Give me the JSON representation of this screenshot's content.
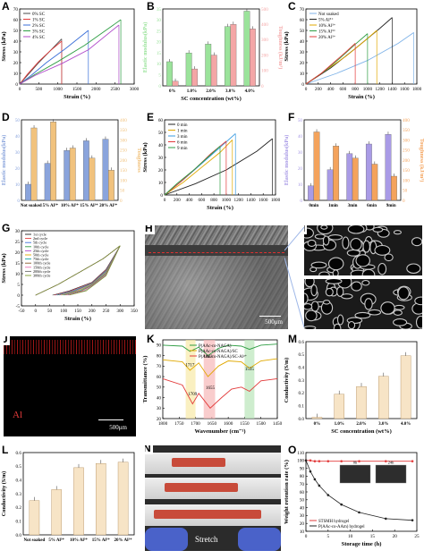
{
  "chart_data": [
    {
      "panel": "A",
      "type": "line",
      "xlabel": "Strain (%)",
      "ylabel": "Stress (kPa)",
      "xlim": [
        0,
        3000
      ],
      "ylim": [
        0,
        70
      ],
      "xticks": [
        0,
        500,
        1000,
        1500,
        2000,
        2500,
        3000
      ],
      "yticks": [
        0,
        10,
        20,
        30,
        40,
        50,
        60,
        70
      ],
      "legend_position": "top-left",
      "series": [
        {
          "name": "0% SC",
          "color": "#4a4a4a",
          "x": [
            0,
            200,
            500,
            800,
            1100
          ],
          "y": [
            0,
            8,
            20,
            31,
            42
          ],
          "break": [
            1100,
            42
          ]
        },
        {
          "name": "1% SC",
          "color": "#e23b3b",
          "x": [
            0,
            200,
            500,
            800,
            1100
          ],
          "y": [
            0,
            9,
            21,
            31,
            40
          ],
          "break": [
            1100,
            40
          ]
        },
        {
          "name": "2% SC",
          "color": "#3a6fd8",
          "x": [
            0,
            300,
            700,
            1200,
            1800
          ],
          "y": [
            0,
            8,
            20,
            33,
            50
          ],
          "break": [
            1800,
            50
          ]
        },
        {
          "name": "3% SC",
          "color": "#2f9e44",
          "x": [
            0,
            400,
            1000,
            1700,
            2650
          ],
          "y": [
            0,
            9,
            21,
            36,
            60
          ],
          "break": [
            2650,
            60
          ]
        },
        {
          "name": "4% SC",
          "color": "#b04aca",
          "x": [
            0,
            400,
            1100,
            1800,
            2600
          ],
          "y": [
            0,
            8,
            19,
            32,
            55
          ],
          "break": [
            2600,
            55
          ]
        }
      ]
    },
    {
      "panel": "B",
      "type": "bar",
      "xlabel": "SC concentration (wt%)",
      "ylabel_left": "Elastic modulus(kPa)",
      "ylabel_right": "Toughness (kJ/m³)",
      "categories": [
        "0%",
        "1.0%",
        "2.0%",
        "3.0%",
        "4.0%"
      ],
      "ylim_left": [
        0,
        35
      ],
      "ylim_right": [
        0,
        500
      ],
      "yticks_left": [
        0,
        5,
        10,
        15,
        20,
        25,
        30,
        35
      ],
      "yticks_right": [
        0,
        100,
        200,
        300,
        400,
        500
      ],
      "series": [
        {
          "name": "Elastic modulus",
          "axis": "left",
          "color": "#9be39b",
          "values": [
            11,
            15,
            19,
            27,
            34
          ]
        },
        {
          "name": "Toughness",
          "axis": "right",
          "color": "#f4a6a6",
          "values": [
            30,
            110,
            200,
            400,
            370
          ]
        }
      ]
    },
    {
      "panel": "C",
      "type": "line",
      "xlabel": "Strain (%)",
      "ylabel": "Stress (kPa)",
      "xlim": [
        0,
        1800
      ],
      "ylim": [
        0,
        70
      ],
      "xticks": [
        0,
        200,
        400,
        600,
        800,
        1000,
        1200,
        1400,
        1600,
        1800
      ],
      "yticks": [
        0,
        10,
        20,
        30,
        40,
        50,
        60,
        70
      ],
      "legend_position": "top-left",
      "series": [
        {
          "name": "Not soaked",
          "color": "#7fb3e8",
          "x": [
            0,
            500,
            1000,
            1500,
            1750
          ],
          "y": [
            0,
            10,
            22,
            38,
            48
          ],
          "break": [
            1750,
            48
          ]
        },
        {
          "name": "5% Al³⁺",
          "color": "#222222",
          "x": [
            0,
            400,
            800,
            1200,
            1400
          ],
          "y": [
            0,
            15,
            33,
            52,
            62
          ],
          "break": [
            1400,
            62
          ]
        },
        {
          "name": "10% Al³⁺",
          "color": "#e0a800",
          "x": [
            0,
            300,
            650,
            950,
            1150
          ],
          "y": [
            0,
            12,
            26,
            40,
            50
          ],
          "break": [
            1150,
            50
          ]
        },
        {
          "name": "15% Al³⁺",
          "color": "#2f9e44",
          "x": [
            0,
            300,
            550,
            800,
            1000
          ],
          "y": [
            0,
            12,
            24,
            37,
            47
          ],
          "break": [
            1000,
            47
          ]
        },
        {
          "name": "20% Al³⁺",
          "color": "#e23b3b",
          "x": [
            0,
            250,
            450,
            650,
            800
          ],
          "y": [
            0,
            10,
            20,
            30,
            38
          ],
          "break": [
            800,
            38
          ]
        }
      ]
    },
    {
      "panel": "D",
      "type": "bar",
      "ylabel_left": "Elastic modulus(kPa)",
      "ylabel_right": "Toughness",
      "categories": [
        "Not soaked",
        "5% Al³⁺",
        "10% Al³⁺",
        "15% Al³⁺",
        "20% Al³⁺"
      ],
      "ylim_left": [
        0,
        50
      ],
      "ylim_right": [
        0,
        400
      ],
      "yticks_left": [
        0,
        10,
        20,
        30,
        40,
        50
      ],
      "yticks_right": [
        0,
        50,
        100,
        150,
        200,
        250,
        300,
        350,
        400
      ],
      "series": [
        {
          "name": "Elastic modulus",
          "axis": "left",
          "color": "#8aa4dc",
          "values": [
            10,
            23,
            31,
            37,
            38
          ]
        },
        {
          "name": "Toughness",
          "axis": "right",
          "color": "#f1c27d",
          "values": [
            360,
            390,
            260,
            210,
            150
          ]
        }
      ]
    },
    {
      "panel": "E",
      "type": "line",
      "xlabel": "Strain (%)",
      "ylabel": "Stress (kPa)",
      "xlim": [
        0,
        1800
      ],
      "ylim": [
        0,
        60
      ],
      "xticks": [
        0,
        200,
        400,
        600,
        800,
        1000,
        1200,
        1400,
        1600,
        1800
      ],
      "yticks": [
        0,
        10,
        20,
        30,
        40,
        50,
        60
      ],
      "legend_position": "top-left",
      "series": [
        {
          "name": "0 min",
          "color": "#222222",
          "x": [
            0,
            500,
            1000,
            1500,
            1750
          ],
          "y": [
            0,
            9,
            20,
            35,
            45
          ],
          "break": [
            1750,
            45
          ]
        },
        {
          "name": "1 min",
          "color": "#e0a800",
          "x": [
            0,
            300,
            600,
            900,
            1100
          ],
          "y": [
            0,
            10,
            22,
            34,
            44
          ],
          "break": [
            1100,
            44
          ]
        },
        {
          "name": "3 min",
          "color": "#3a9be0",
          "x": [
            0,
            300,
            600,
            900,
            1150
          ],
          "y": [
            0,
            12,
            25,
            38,
            49
          ],
          "break": [
            1150,
            49
          ]
        },
        {
          "name": "6 min",
          "color": "#e23b3b",
          "x": [
            0,
            250,
            500,
            750,
            1000
          ],
          "y": [
            0,
            10,
            21,
            33,
            43
          ],
          "break": [
            1000,
            43
          ]
        },
        {
          "name": "9 min",
          "color": "#2f9e44",
          "x": [
            0,
            200,
            450,
            700,
            900
          ],
          "y": [
            0,
            9,
            19,
            30,
            39
          ],
          "break": [
            900,
            39
          ]
        }
      ]
    },
    {
      "panel": "F",
      "type": "bar",
      "ylabel_left": "Elastic modulus(kPa)",
      "ylabel_right": "Toughness (kJ/m³)",
      "categories": [
        "0min",
        "1min",
        "3min",
        "6min",
        "9min"
      ],
      "ylim_left": [
        0,
        50
      ],
      "ylim_right": [
        0,
        400
      ],
      "yticks_left": [
        0,
        10,
        20,
        30,
        40,
        50
      ],
      "yticks_right": [
        0,
        50,
        100,
        150,
        200,
        250,
        300,
        350,
        400
      ],
      "series": [
        {
          "name": "Elastic modulus",
          "axis": "left",
          "color": "#a99be6",
          "values": [
            9,
            19,
            29,
            35,
            41
          ]
        },
        {
          "name": "Toughness",
          "axis": "right",
          "color": "#f4a35c",
          "values": [
            340,
            270,
            210,
            180,
            120
          ]
        }
      ]
    },
    {
      "panel": "G",
      "type": "line",
      "xlabel": "Strain (%)",
      "ylabel": "Stress (kPa)",
      "xlim": [
        -50,
        350
      ],
      "ylim": [
        -5,
        30
      ],
      "xticks": [
        -50,
        0,
        50,
        100,
        150,
        200,
        250,
        300,
        350
      ],
      "yticks": [
        -5,
        0,
        5,
        10,
        15,
        20,
        25,
        30
      ],
      "legend_position": "top-left",
      "series": [
        {
          "name": "1st cycle",
          "color": "#222222"
        },
        {
          "name": "2nd cycle",
          "color": "#e23b3b"
        },
        {
          "name": "5th cycle",
          "color": "#3a6fd8"
        },
        {
          "name": "10th cycle",
          "color": "#2f9e44"
        },
        {
          "name": "25th cycle",
          "color": "#b04aca"
        },
        {
          "name": "50th cycle",
          "color": "#e0a800"
        },
        {
          "name": "75th cycle",
          "color": "#13a3a3"
        },
        {
          "name": "100th cycle",
          "color": "#8b5a2b"
        },
        {
          "name": "150th cycle",
          "color": "#e86fb0"
        },
        {
          "name": "200th cycle",
          "color": "#6f6f6f"
        },
        {
          "name": "300th cycle",
          "color": "#7d9b2a"
        }
      ],
      "peak": [
        300,
        23
      ]
    },
    {
      "panel": "K",
      "type": "line",
      "xlabel": "Wavenumber (cm⁻¹)",
      "ylabel": "Transmittance (%)",
      "xlim": [
        1800,
        1450
      ],
      "ylim": [
        20,
        95
      ],
      "xticks": [
        1800,
        1750,
        1700,
        1650,
        1600,
        1550,
        1500,
        1450
      ],
      "yticks": [
        20,
        30,
        40,
        50,
        60,
        70,
        80,
        90
      ],
      "peaks": [
        "1717",
        "1709",
        "1662",
        "1655",
        "1535"
      ],
      "series": [
        {
          "name": "P(AAc-co-NAGA)",
          "color": "#2f9e44",
          "x": [
            1800,
            1740,
            1717,
            1690,
            1662,
            1630,
            1600,
            1560,
            1535,
            1500,
            1450
          ],
          "y": [
            90,
            89,
            84,
            88,
            80,
            87,
            90,
            89,
            86,
            90,
            91
          ]
        },
        {
          "name": "P(AAc-co-NAGA)/SC",
          "color": "#e0a800",
          "x": [
            1800,
            1740,
            1717,
            1690,
            1662,
            1630,
            1600,
            1560,
            1535,
            1500,
            1450
          ],
          "y": [
            76,
            74,
            66,
            73,
            60,
            70,
            75,
            74,
            68,
            75,
            77
          ]
        },
        {
          "name": "P(AAc-co-NAGA)/SC-Al³⁺",
          "color": "#e23b3b",
          "x": [
            1800,
            1740,
            1709,
            1690,
            1655,
            1620,
            1590,
            1560,
            1535,
            1500,
            1450
          ],
          "y": [
            58,
            52,
            34,
            44,
            30,
            40,
            48,
            50,
            46,
            56,
            58
          ]
        }
      ]
    },
    {
      "panel": "M",
      "type": "bar",
      "xlabel": "SC concentration (wt%)",
      "ylabel": "Conductivity (S/m)",
      "categories": [
        "0%",
        "1.0%",
        "2.0%",
        "3.0%",
        "4.0%"
      ],
      "ylim": [
        0,
        0.6
      ],
      "yticks": [
        0.0,
        0.1,
        0.2,
        0.3,
        0.4,
        0.5,
        0.6
      ],
      "values": [
        0.01,
        0.19,
        0.25,
        0.33,
        0.49
      ]
    },
    {
      "panel": "L",
      "type": "bar",
      "ylabel": "Conductivity (S/m)",
      "categories": [
        "Not soaked",
        "5% Al³⁺",
        "10% Al³⁺",
        "15% Al³⁺",
        "20% Al³⁺"
      ],
      "ylim": [
        0,
        0.6
      ],
      "yticks": [
        0.0,
        0.1,
        0.2,
        0.3,
        0.4,
        0.5,
        0.6
      ],
      "values": [
        0.25,
        0.33,
        0.49,
        0.52,
        0.53
      ]
    },
    {
      "panel": "O",
      "type": "line",
      "xlabel": "Storage time (h)",
      "ylabel": "Weight retention rate (%)",
      "xlim": [
        0,
        25
      ],
      "ylim": [
        10,
        110
      ],
      "xticks": [
        0,
        5,
        10,
        15,
        20,
        25
      ],
      "yticks": [
        10,
        20,
        30,
        40,
        50,
        60,
        70,
        80,
        90,
        100,
        110
      ],
      "legend_position": "bottom-left",
      "series": [
        {
          "name": "STSMH hydrogel",
          "color": "#e23b3b",
          "x": [
            0,
            1,
            2,
            3,
            5,
            8,
            12,
            18,
            24
          ],
          "y": [
            100,
            100,
            99,
            99,
            99,
            99,
            99,
            99,
            99
          ]
        },
        {
          "name": "P(AAc-co-AAm) hydrogel",
          "color": "#222222",
          "x": [
            0,
            1,
            2,
            3,
            5,
            8,
            12,
            18,
            24
          ],
          "y": [
            100,
            86,
            76,
            68,
            56,
            44,
            34,
            26,
            24
          ]
        }
      ]
    }
  ],
  "images": {
    "H": {
      "label": "H",
      "scale": "500μm"
    },
    "I": {
      "label": "I"
    },
    "J": {
      "label": "J",
      "element": "Al",
      "scale": "500μm"
    },
    "N": {
      "label": "N",
      "caption": "Stretch"
    },
    "O_insets": [
      "0h",
      "24h"
    ]
  },
  "labels": {
    "A": "A",
    "B": "B",
    "C": "C",
    "D": "D",
    "E": "E",
    "F": "F",
    "G": "G",
    "K": "K",
    "L": "L",
    "M": "M",
    "O": "O"
  }
}
